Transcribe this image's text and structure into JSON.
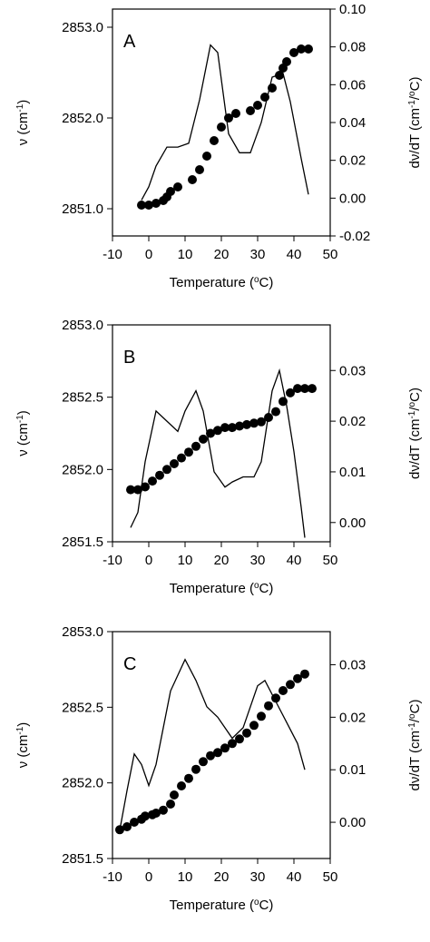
{
  "chart_data": [
    {
      "type": "line",
      "panel_label": "A",
      "xlabel": "Temperature (°C)",
      "ylabel_left": "ν (cm⁻¹)",
      "ylabel_right": "dν/dT (cm⁻¹/°C)",
      "xlim": [
        -10,
        50
      ],
      "xticks": [
        -10,
        0,
        10,
        20,
        30,
        40,
        50
      ],
      "ylim_left": [
        2850.7,
        2853.2
      ],
      "yticks_left": [
        2851.0,
        2852.0,
        2853.0
      ],
      "ytick_labels_left": [
        "2851.0",
        "2852.0",
        "2853.0"
      ],
      "ylim_right": [
        -0.02,
        0.1
      ],
      "yticks_right": [
        -0.02,
        0.0,
        0.02,
        0.04,
        0.06,
        0.08,
        0.1
      ],
      "ytick_labels_right": [
        "-0.02",
        "0.00",
        "0.02",
        "0.04",
        "0.06",
        "0.08",
        "0.10"
      ],
      "series": [
        {
          "marker": "filled-circle",
          "axis": "left",
          "x": [
            -2,
            0,
            2,
            4,
            5,
            6,
            8,
            12,
            14,
            16,
            18,
            20,
            22,
            24,
            28,
            30,
            32,
            34,
            36,
            37,
            38,
            40,
            42,
            44
          ],
          "y": [
            2851.04,
            2851.04,
            2851.06,
            2851.09,
            2851.13,
            2851.19,
            2851.24,
            2851.32,
            2851.43,
            2851.58,
            2851.75,
            2851.9,
            2852.0,
            2852.05,
            2852.08,
            2852.14,
            2852.23,
            2852.33,
            2852.47,
            2852.55,
            2852.62,
            2852.72,
            2852.76,
            2852.76
          ]
        },
        {
          "marker": "line",
          "axis": "right",
          "x": [
            -2,
            0,
            2,
            5,
            8,
            11,
            14,
            17,
            19,
            22,
            25,
            28,
            31,
            34,
            37,
            39,
            42,
            44
          ],
          "y": [
            -0.001,
            0.006,
            0.017,
            0.027,
            0.027,
            0.029,
            0.052,
            0.081,
            0.077,
            0.034,
            0.024,
            0.024,
            0.04,
            0.064,
            0.066,
            0.051,
            0.021,
            0.002
          ]
        }
      ]
    },
    {
      "type": "line",
      "panel_label": "B",
      "xlabel": "Temperature (°C)",
      "ylabel_left": "ν (cm⁻¹)",
      "ylabel_right": "dν/dT (cm⁻¹/°C)",
      "xlim": [
        -10,
        50
      ],
      "xticks": [
        -10,
        0,
        10,
        20,
        30,
        40,
        50
      ],
      "ylim_left": [
        2851.5,
        2853.0
      ],
      "yticks_left": [
        2851.5,
        2852.0,
        2852.5,
        2853.0
      ],
      "ytick_labels_left": [
        "2851.5",
        "2852.0",
        "2852.5",
        "2853.0"
      ],
      "ylim_right": [
        -0.0038,
        0.039
      ],
      "yticks_right": [
        0.0,
        0.01,
        0.02,
        0.03
      ],
      "ytick_labels_right": [
        "0.00",
        "0.01",
        "0.02",
        "0.03"
      ],
      "series": [
        {
          "marker": "filled-circle",
          "axis": "left",
          "x": [
            -5,
            -3,
            -1,
            1,
            3,
            5,
            7,
            9,
            11,
            13,
            15,
            17,
            19,
            21,
            23,
            25,
            27,
            29,
            31,
            33,
            35,
            37,
            39,
            41,
            43,
            45
          ],
          "y": [
            2851.86,
            2851.86,
            2851.88,
            2851.92,
            2851.96,
            2852.0,
            2852.04,
            2852.08,
            2852.12,
            2852.16,
            2852.21,
            2852.25,
            2852.27,
            2852.29,
            2852.29,
            2852.3,
            2852.31,
            2852.32,
            2852.33,
            2852.36,
            2852.4,
            2852.47,
            2852.53,
            2852.56,
            2852.56,
            2852.56
          ]
        },
        {
          "marker": "line",
          "axis": "right",
          "x": [
            -5,
            -3,
            -1,
            2,
            5,
            8,
            10,
            13,
            15,
            18,
            21,
            23,
            26,
            29,
            31,
            34,
            36,
            38,
            40,
            42,
            43
          ],
          "y": [
            -0.001,
            0.002,
            0.012,
            0.022,
            0.02,
            0.018,
            0.022,
            0.026,
            0.022,
            0.01,
            0.007,
            0.008,
            0.009,
            0.009,
            0.012,
            0.026,
            0.03,
            0.023,
            0.014,
            0.003,
            -0.003
          ]
        }
      ]
    },
    {
      "type": "line",
      "panel_label": "C",
      "xlabel": "Temperature (°C)",
      "ylabel_left": "ν (cm⁻¹)",
      "ylabel_right": "dν/dT (cm⁻¹/°C)",
      "xlim": [
        -10,
        50
      ],
      "xticks": [
        -10,
        0,
        10,
        20,
        30,
        40,
        50
      ],
      "ylim_left": [
        2851.5,
        2853.0
      ],
      "yticks_left": [
        2851.5,
        2852.0,
        2852.5,
        2853.0
      ],
      "ytick_labels_left": [
        "2851.5",
        "2852.0",
        "2852.5",
        "2853.0"
      ],
      "ylim_right": [
        -0.0069,
        0.0363
      ],
      "yticks_right": [
        0.0,
        0.01,
        0.02,
        0.03
      ],
      "ytick_labels_right": [
        "0.00",
        "0.01",
        "0.02",
        "0.03"
      ],
      "series": [
        {
          "marker": "filled-circle",
          "axis": "left",
          "x": [
            -8,
            -6,
            -4,
            -2,
            -1,
            1,
            2,
            4,
            6,
            7,
            9,
            11,
            13,
            15,
            17,
            19,
            21,
            23,
            25,
            27,
            29,
            31,
            33,
            35,
            37,
            39,
            41,
            43
          ],
          "y": [
            2851.69,
            2851.71,
            2851.74,
            2851.76,
            2851.78,
            2851.79,
            2851.8,
            2851.82,
            2851.86,
            2851.92,
            2851.98,
            2852.03,
            2852.09,
            2852.14,
            2852.18,
            2852.2,
            2852.23,
            2852.26,
            2852.29,
            2852.33,
            2852.38,
            2852.44,
            2852.51,
            2852.56,
            2852.61,
            2852.65,
            2852.69,
            2852.72
          ]
        },
        {
          "marker": "line",
          "axis": "right",
          "x": [
            -8,
            -6,
            -4,
            -2,
            0,
            2,
            6,
            10,
            13,
            16,
            19,
            23,
            26,
            30,
            32,
            35,
            38,
            41,
            43
          ],
          "y": [
            -0.0015,
            0.006,
            0.013,
            0.011,
            0.007,
            0.011,
            0.025,
            0.031,
            0.027,
            0.022,
            0.02,
            0.016,
            0.018,
            0.026,
            0.027,
            0.023,
            0.019,
            0.015,
            0.01
          ]
        }
      ]
    }
  ]
}
